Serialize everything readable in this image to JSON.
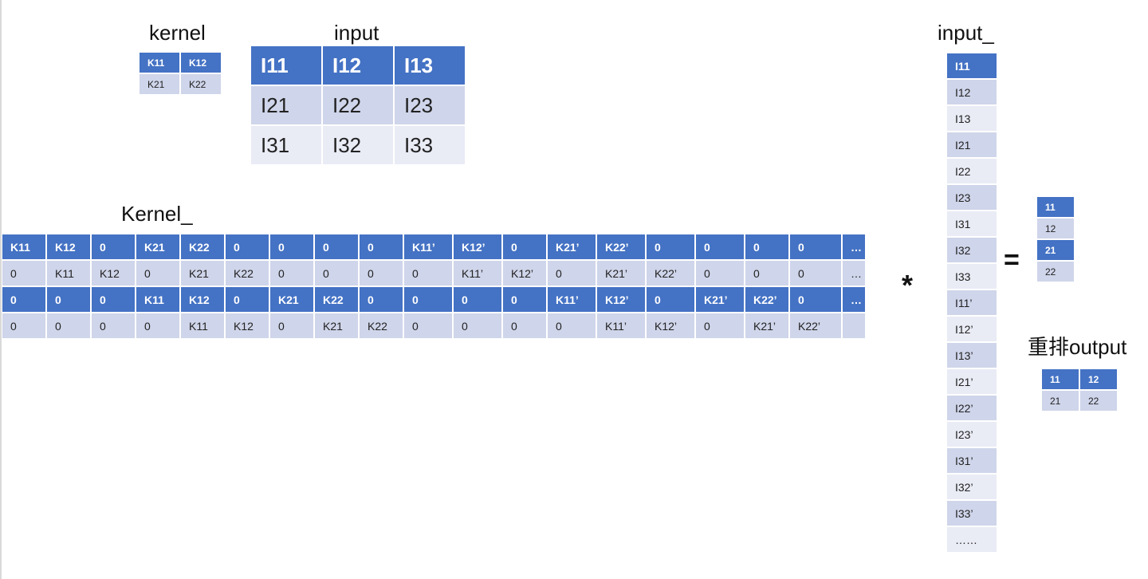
{
  "labels": {
    "kernel": "kernel",
    "input": "input",
    "kernel_flat": "Kernel_",
    "input_col": "input_",
    "reshaped": "重排output",
    "multiply": "*",
    "equals": "="
  },
  "kernel": {
    "rows": [
      [
        "K11",
        "K12"
      ],
      [
        "K21",
        "K22"
      ]
    ]
  },
  "input": {
    "rows": [
      [
        "I11",
        "I12",
        "I13"
      ],
      [
        "I21",
        "I22",
        "I23"
      ],
      [
        "I31",
        "I32",
        "I33"
      ]
    ]
  },
  "kernel_flat": {
    "rows": [
      [
        "K11",
        "K12",
        "0",
        "K21",
        "K22",
        "0",
        "0",
        "0",
        "0",
        "K11’",
        "K12’",
        "0",
        "K21’",
        "K22’",
        "0",
        "0",
        "0",
        "0",
        "…"
      ],
      [
        "0",
        "K11",
        "K12",
        "0",
        "K21",
        "K22",
        "0",
        "0",
        "0",
        "0",
        "K11’",
        "K12’",
        "0",
        "K21’",
        "K22’",
        "0",
        "0",
        "0",
        "…"
      ],
      [
        "0",
        "0",
        "0",
        "K11",
        "K12",
        "0",
        "K21",
        "K22",
        "0",
        "0",
        "0",
        "0",
        "K11’",
        "K12’",
        "0",
        "K21’",
        "K22’",
        "0",
        "…"
      ],
      [
        "0",
        "0",
        "0",
        "0",
        "K11",
        "K12",
        "0",
        "K21",
        "K22",
        "0",
        "0",
        "0",
        "0",
        "K11’",
        "K12’",
        "0",
        "K21’",
        "K22’",
        ""
      ]
    ]
  },
  "input_col": {
    "items": [
      "I11",
      "I12",
      "I13",
      "I21",
      "I22",
      "I23",
      "I31",
      "I32",
      "I33",
      "I11’",
      "I12’",
      "I13’",
      "I21’",
      "I22’",
      "I23’",
      "I31’",
      "I32’",
      "I33’",
      "……"
    ]
  },
  "output_col": {
    "items": [
      "11",
      "12",
      "21",
      "22"
    ]
  },
  "reshaped_output": {
    "rows": [
      [
        "11",
        "12"
      ],
      [
        "21",
        "22"
      ]
    ]
  },
  "colors": {
    "header_blue": "#4472c4",
    "row_dark": "#cfd5ea",
    "row_light": "#e9ebf5"
  }
}
